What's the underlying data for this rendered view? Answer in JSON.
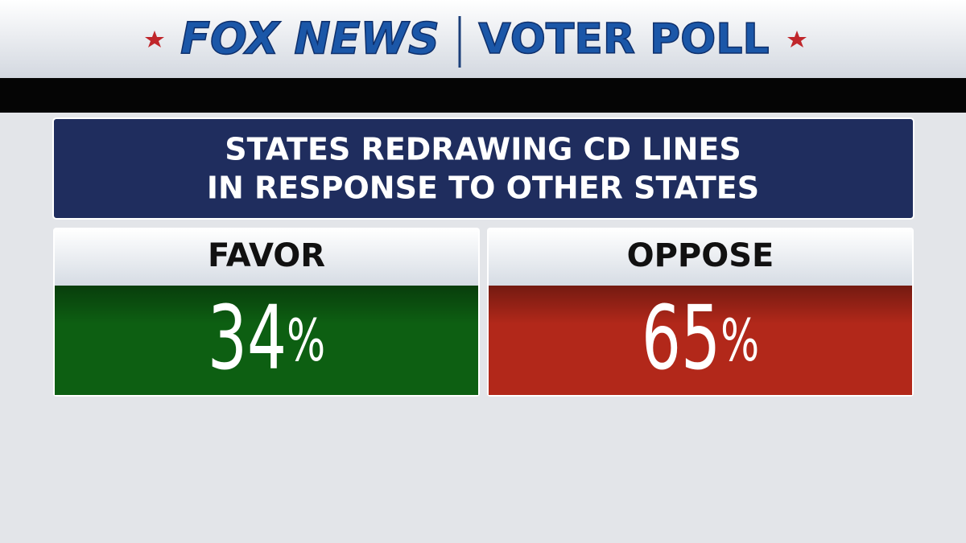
{
  "header": {
    "brand": "FOX NEWS",
    "label": "VOTER POLL"
  },
  "chart_data": {
    "type": "poll",
    "title": [
      "STATES REDRAWING CD LINES",
      "IN RESPONSE TO OTHER STATES"
    ],
    "categories": [
      "FAVOR",
      "OPPOSE"
    ],
    "values": [
      34,
      65
    ],
    "value_labels": [
      "34%",
      "65%"
    ],
    "colors": [
      "#0d5f12",
      "#b2281a"
    ]
  }
}
